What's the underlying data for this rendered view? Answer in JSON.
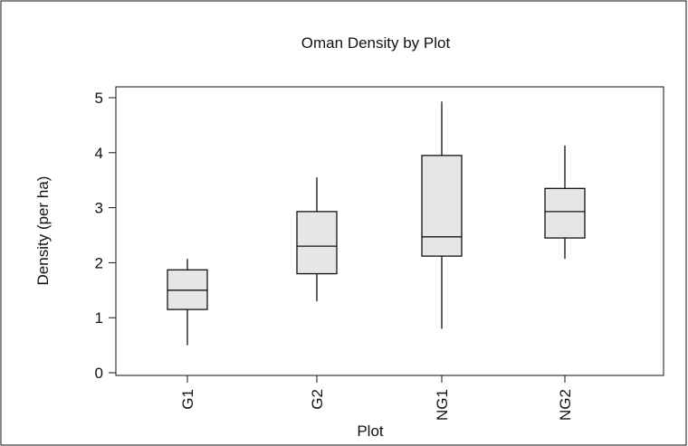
{
  "chart_data": {
    "type": "boxplot",
    "title": "Oman Density by Plot",
    "xlabel": "Plot",
    "ylabel": "Density (per ha)",
    "ylim": [
      0,
      5.25
    ],
    "yticks": [
      0,
      1,
      2,
      3,
      4,
      5
    ],
    "categories": [
      "G1",
      "G2",
      "NG1",
      "NG2"
    ],
    "boxes": [
      {
        "category": "G1",
        "min": 0.5,
        "q1": 1.15,
        "median": 1.5,
        "q3": 1.87,
        "max": 2.07
      },
      {
        "category": "G2",
        "min": 1.3,
        "q1": 1.8,
        "median": 2.3,
        "q3": 2.93,
        "max": 3.55
      },
      {
        "category": "NG1",
        "min": 0.8,
        "q1": 2.12,
        "median": 2.47,
        "q3": 3.95,
        "max": 4.93
      },
      {
        "category": "NG2",
        "min": 2.07,
        "q1": 2.45,
        "median": 2.93,
        "q3": 3.35,
        "max": 4.13
      }
    ],
    "box_fill": "#e6e6e6",
    "line_color": "#111111",
    "grid": false,
    "legend": "none"
  }
}
